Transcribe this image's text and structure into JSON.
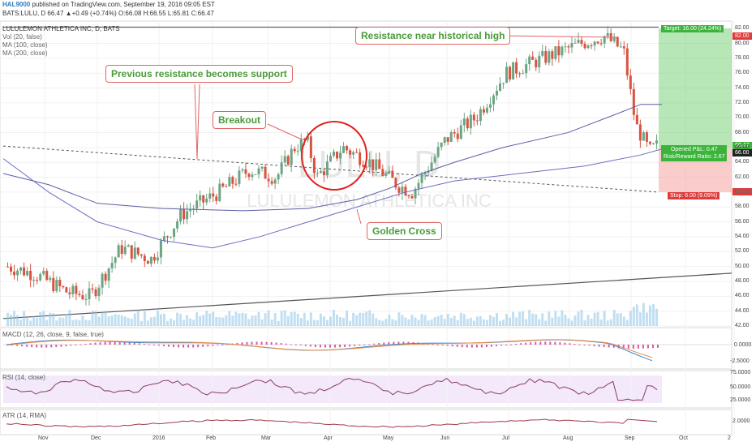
{
  "header": {
    "author": "HAL9000",
    "published": "published on TradingView.com, September 19, 2016 09:05 EST",
    "symbol_line": "BATS:LULU, D  66.47 ▲+0.49 (+0.74%) O:66.08 H:66.55 L:65.81 C:66.47"
  },
  "watermark": {
    "ticker": "LULU, D",
    "name": "LULULEMON ATHLETICA INC"
  },
  "legend": {
    "title": "LULULEMON ATHLETICA INC, D, BATS",
    "vol": "Vol (20, false)",
    "ma100": "MA (100, close)",
    "ma200": "MA (200, close)"
  },
  "annotations": {
    "resistance_high": "Resistance near historical high",
    "prev_resistance": "Previous resistance becomes support",
    "breakout": "Breakout",
    "golden_cross": "Golden Cross"
  },
  "trade": {
    "target": "Target: 16.00 (24.24%)",
    "stop": "Stop: 6.00 (9.09%)",
    "opened_pnl": "Opened P&L: 0.47",
    "risk_reward": "Risk/Reward Ratio: 2.67",
    "target_price": "82.00",
    "last_price": "66.47",
    "entry_price": "66.00",
    "stop_price": "60.00"
  },
  "indicators": {
    "macd": "MACD (12, 26, close, 9, false, true)",
    "rsi": "RSI (14, close)",
    "atr": "ATR (14, RMA)"
  },
  "price_axis": [
    "82.00",
    "80.00",
    "78.00",
    "76.00",
    "74.00",
    "72.00",
    "70.00",
    "68.00",
    "66.00",
    "64.00",
    "62.00",
    "60.00",
    "58.00",
    "56.00",
    "54.00",
    "52.00",
    "50.00",
    "48.00",
    "46.00",
    "44.00",
    "42.00"
  ],
  "macd_axis": [
    "0.0000",
    "-2.5000"
  ],
  "rsi_axis": [
    "75.0000",
    "50.0000",
    "25.0000"
  ],
  "atr_axis": [
    "2.0000"
  ],
  "date_axis": [
    "Nov",
    "Dec",
    "2016",
    "Feb",
    "Mar",
    "Apr",
    "May",
    "Jun",
    "Jul",
    "Aug",
    "Sep",
    "Oct",
    "2"
  ],
  "colors": {
    "up": "#6ba583",
    "down": "#d75442",
    "ma100": "#5b5ea6",
    "ma200": "#6a6ec0",
    "target_zone": "#7bd17b",
    "stop_zone": "#f7a3a3",
    "annotation_text": "#4a9a3a",
    "annotation_border": "#e06666",
    "macd": "#3a8fd6",
    "signal": "#f08a3c",
    "rsi": "#8a3a6a",
    "atr": "#a03a4a"
  },
  "chart_data": {
    "type": "candlestick",
    "title": "LULULEMON ATHLETICA INC, D, BATS",
    "ylim": [
      42,
      83
    ],
    "monthly_close_approx": {
      "x": [
        "2015-11",
        "2015-12",
        "2016-01",
        "2016-02",
        "2016-03",
        "2016-04",
        "2016-05",
        "2016-06",
        "2016-07",
        "2016-08",
        "2016-09"
      ],
      "close": [
        48.0,
        46.5,
        52.5,
        60.0,
        64.0,
        63.5,
        61.5,
        72.0,
        78.0,
        80.0,
        66.47
      ]
    },
    "levels": {
      "historical_high_resistance": 82.0,
      "target": 82.0,
      "entry": 66.0,
      "stop": 60.0
    },
    "last_bar": {
      "open": 66.08,
      "high": 66.55,
      "low": 65.81,
      "close": 66.47,
      "change": 0.49,
      "change_pct": 0.74
    }
  }
}
